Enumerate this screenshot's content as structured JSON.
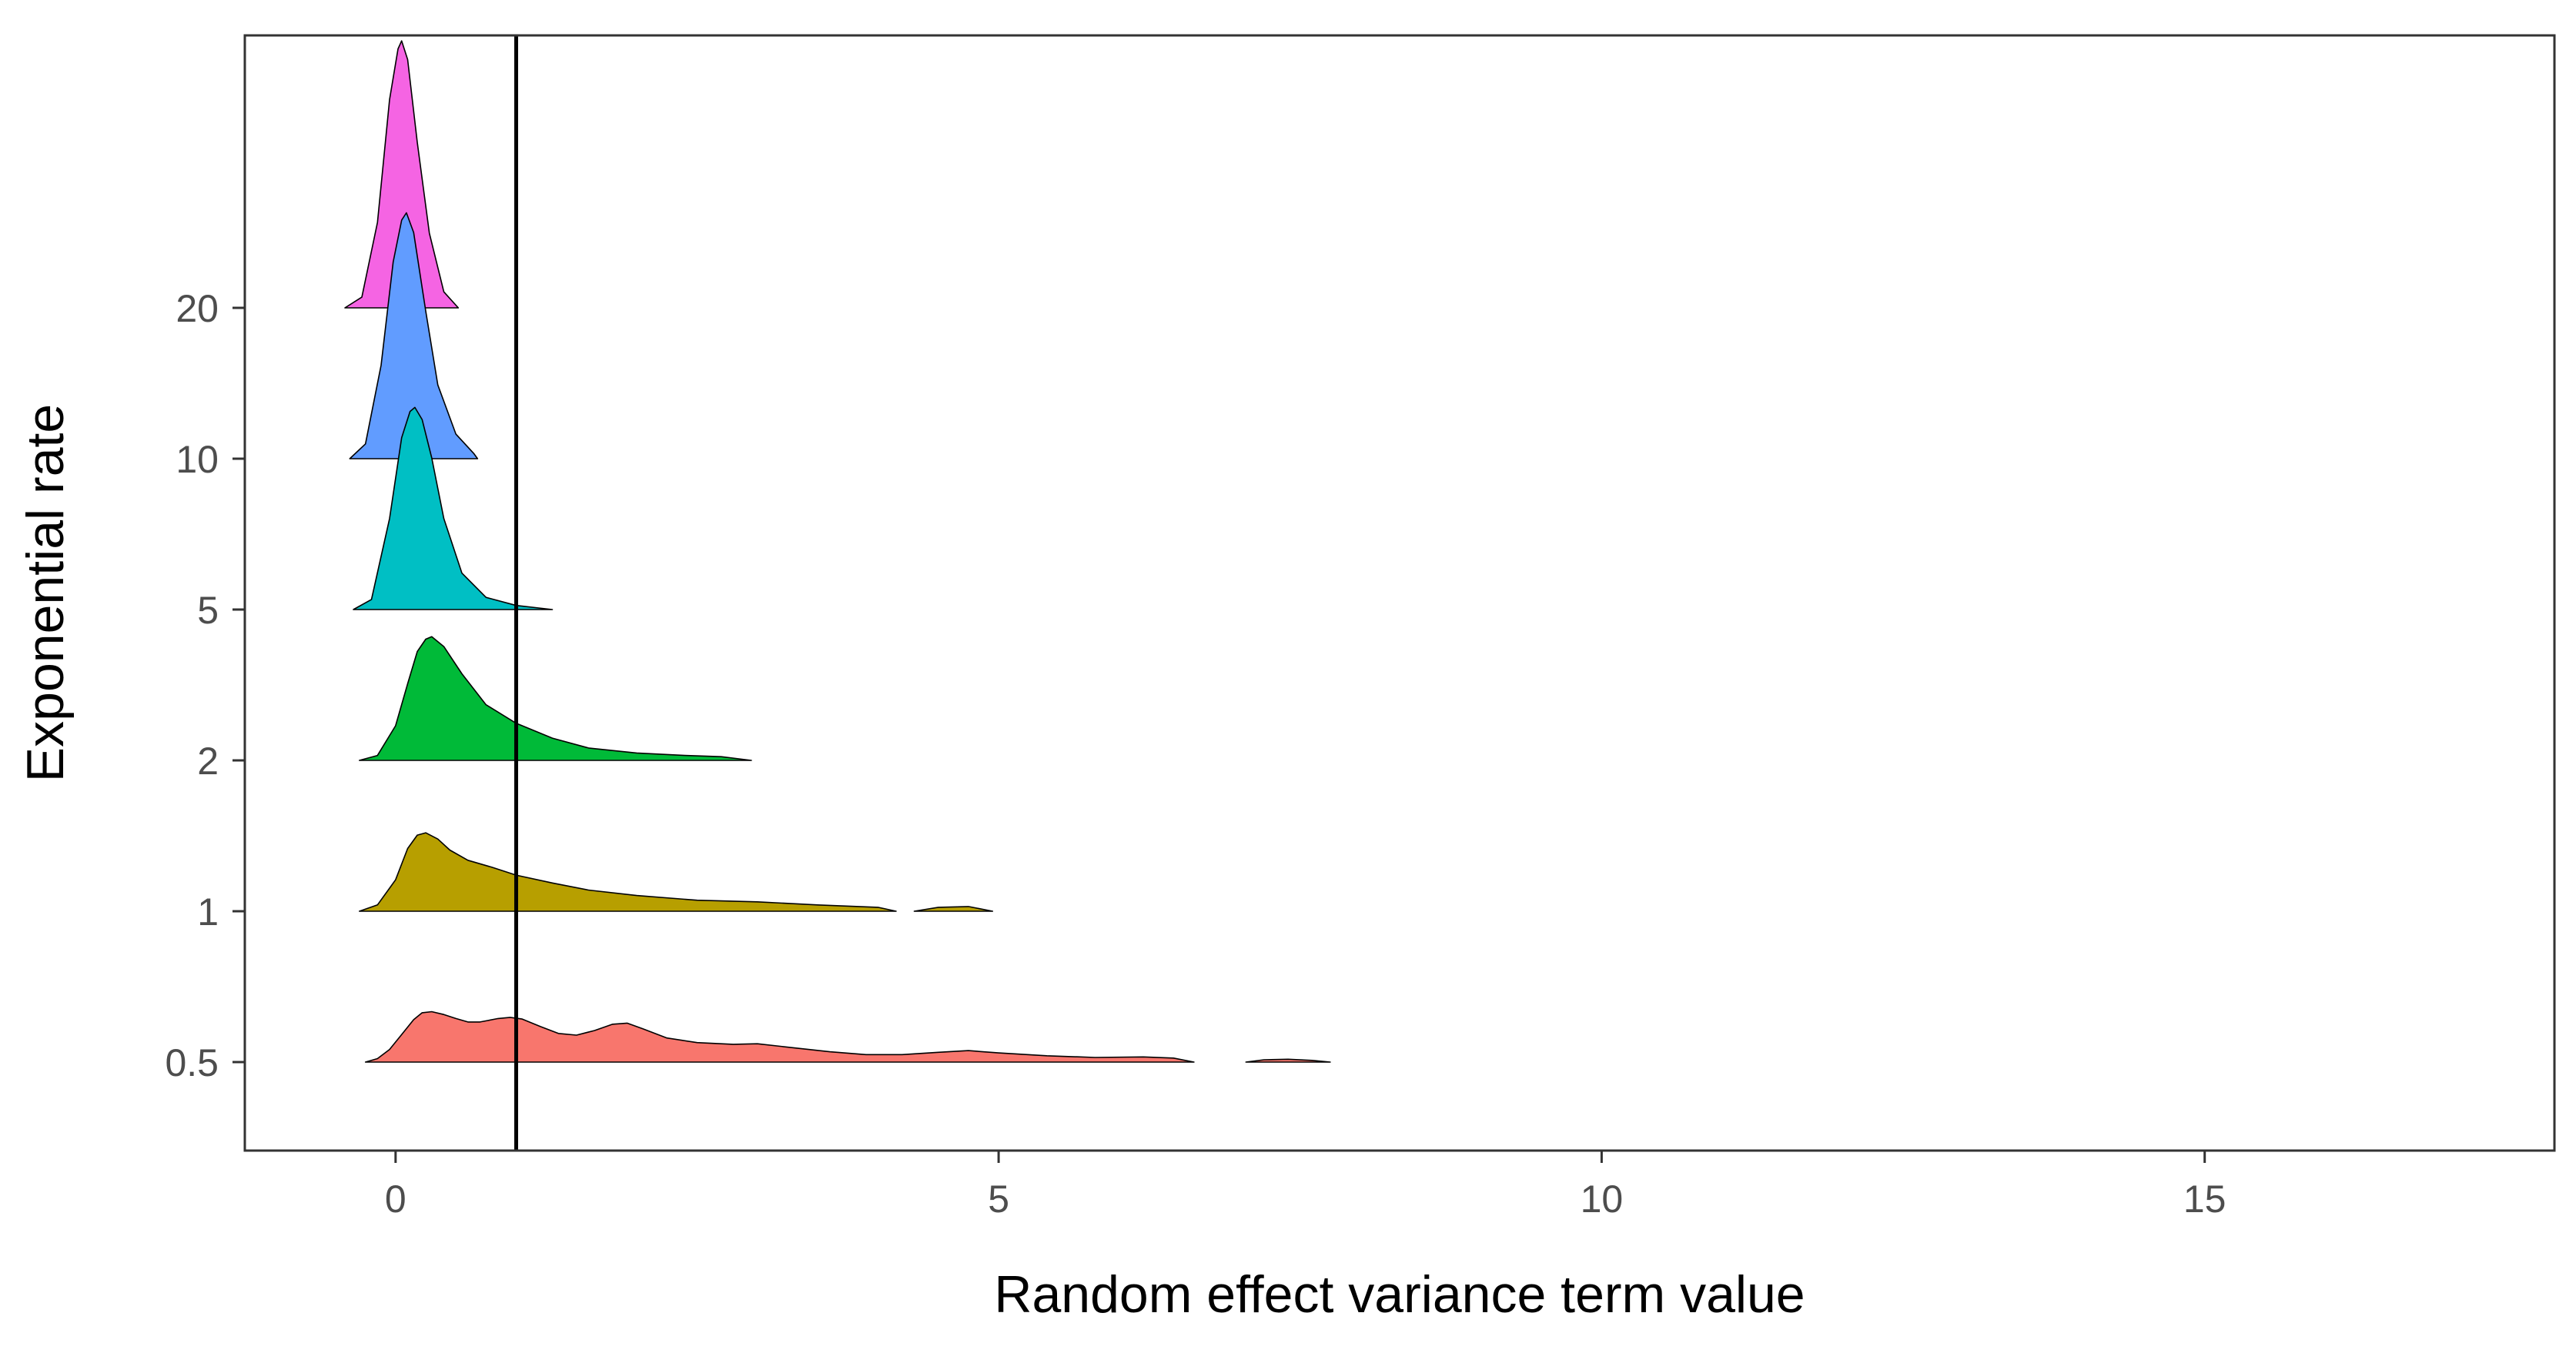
{
  "chart_data": {
    "type": "ridgeline",
    "title": "",
    "xlabel": "Random effect variance term value",
    "ylabel": "Exponential rate",
    "xlim": [
      -1.25,
      17.9
    ],
    "x_ticks": [
      0,
      5,
      10,
      15
    ],
    "categories": [
      "0.5",
      "1",
      "2",
      "5",
      "10",
      "20"
    ],
    "reference_line_x": 1,
    "grid": false,
    "legend": "none",
    "series": [
      {
        "name": "0.5",
        "color": "#F8766D",
        "peak_height": 0.38,
        "segments": [
          [
            [
              -0.25,
              0.0
            ],
            [
              -0.15,
              0.06
            ],
            [
              -0.05,
              0.22
            ],
            [
              0.05,
              0.48
            ],
            [
              0.15,
              0.74
            ],
            [
              0.22,
              0.86
            ],
            [
              0.3,
              0.88
            ],
            [
              0.4,
              0.83
            ],
            [
              0.5,
              0.76
            ],
            [
              0.6,
              0.7
            ],
            [
              0.7,
              0.7
            ],
            [
              0.85,
              0.76
            ],
            [
              0.95,
              0.78
            ],
            [
              1.05,
              0.75
            ],
            [
              1.2,
              0.62
            ],
            [
              1.35,
              0.5
            ],
            [
              1.5,
              0.47
            ],
            [
              1.65,
              0.55
            ],
            [
              1.8,
              0.66
            ],
            [
              1.92,
              0.68
            ],
            [
              2.05,
              0.58
            ],
            [
              2.25,
              0.42
            ],
            [
              2.5,
              0.34
            ],
            [
              2.8,
              0.31
            ],
            [
              3.0,
              0.32
            ],
            [
              3.3,
              0.25
            ],
            [
              3.6,
              0.18
            ],
            [
              3.9,
              0.13
            ],
            [
              4.2,
              0.13
            ],
            [
              4.5,
              0.17
            ],
            [
              4.75,
              0.2
            ],
            [
              5.0,
              0.16
            ],
            [
              5.4,
              0.11
            ],
            [
              5.8,
              0.08
            ],
            [
              6.2,
              0.09
            ],
            [
              6.45,
              0.07
            ],
            [
              6.62,
              0.0
            ]
          ],
          [
            [
              7.05,
              0.0
            ],
            [
              7.2,
              0.04
            ],
            [
              7.4,
              0.05
            ],
            [
              7.6,
              0.03
            ],
            [
              7.75,
              0.0
            ]
          ]
        ]
      },
      {
        "name": "1",
        "color": "#B79F00",
        "peak_height": 0.52,
        "segments": [
          [
            [
              -0.3,
              0.0
            ],
            [
              -0.15,
              0.08
            ],
            [
              0.0,
              0.4
            ],
            [
              0.1,
              0.8
            ],
            [
              0.18,
              0.97
            ],
            [
              0.25,
              1.0
            ],
            [
              0.35,
              0.92
            ],
            [
              0.45,
              0.78
            ],
            [
              0.6,
              0.65
            ],
            [
              0.8,
              0.56
            ],
            [
              1.0,
              0.46
            ],
            [
              1.3,
              0.36
            ],
            [
              1.6,
              0.27
            ],
            [
              2.0,
              0.2
            ],
            [
              2.5,
              0.14
            ],
            [
              3.0,
              0.12
            ],
            [
              3.5,
              0.08
            ],
            [
              4.0,
              0.05
            ],
            [
              4.15,
              0.0
            ]
          ],
          [
            [
              4.3,
              0.0
            ],
            [
              4.5,
              0.05
            ],
            [
              4.75,
              0.06
            ],
            [
              4.95,
              0.0
            ]
          ]
        ]
      },
      {
        "name": "2",
        "color": "#00BA38",
        "peak_height": 0.82,
        "segments": [
          [
            [
              -0.3,
              0.0
            ],
            [
              -0.15,
              0.04
            ],
            [
              0.0,
              0.28
            ],
            [
              0.1,
              0.62
            ],
            [
              0.18,
              0.88
            ],
            [
              0.25,
              0.98
            ],
            [
              0.3,
              1.0
            ],
            [
              0.4,
              0.92
            ],
            [
              0.55,
              0.7
            ],
            [
              0.75,
              0.45
            ],
            [
              1.0,
              0.3
            ],
            [
              1.3,
              0.18
            ],
            [
              1.6,
              0.1
            ],
            [
              2.0,
              0.06
            ],
            [
              2.4,
              0.04
            ],
            [
              2.7,
              0.03
            ],
            [
              2.95,
              0.0
            ]
          ]
        ]
      },
      {
        "name": "5",
        "color": "#00BFC4",
        "peak_height": 1.34,
        "segments": [
          [
            [
              -0.35,
              0.0
            ],
            [
              -0.2,
              0.05
            ],
            [
              -0.05,
              0.45
            ],
            [
              0.05,
              0.85
            ],
            [
              0.12,
              0.98
            ],
            [
              0.16,
              1.0
            ],
            [
              0.22,
              0.94
            ],
            [
              0.3,
              0.75
            ],
            [
              0.4,
              0.45
            ],
            [
              0.55,
              0.18
            ],
            [
              0.75,
              0.06
            ],
            [
              1.0,
              0.02
            ],
            [
              1.3,
              0.0
            ]
          ]
        ]
      },
      {
        "name": "10",
        "color": "#619CFF",
        "peak_height": 1.63,
        "segments": [
          [
            [
              -0.38,
              0.0
            ],
            [
              -0.25,
              0.06
            ],
            [
              -0.12,
              0.38
            ],
            [
              -0.02,
              0.8
            ],
            [
              0.05,
              0.97
            ],
            [
              0.09,
              1.0
            ],
            [
              0.15,
              0.92
            ],
            [
              0.25,
              0.6
            ],
            [
              0.35,
              0.3
            ],
            [
              0.5,
              0.1
            ],
            [
              0.65,
              0.02
            ],
            [
              0.68,
              0.0
            ]
          ]
        ]
      },
      {
        "name": "20",
        "color": "#F564E3",
        "peak_height": 1.77,
        "segments": [
          [
            [
              -0.42,
              0.0
            ],
            [
              -0.28,
              0.04
            ],
            [
              -0.15,
              0.32
            ],
            [
              -0.05,
              0.78
            ],
            [
              0.02,
              0.97
            ],
            [
              0.05,
              1.0
            ],
            [
              0.1,
              0.93
            ],
            [
              0.18,
              0.62
            ],
            [
              0.28,
              0.28
            ],
            [
              0.4,
              0.06
            ],
            [
              0.52,
              0.0
            ]
          ]
        ]
      }
    ]
  }
}
